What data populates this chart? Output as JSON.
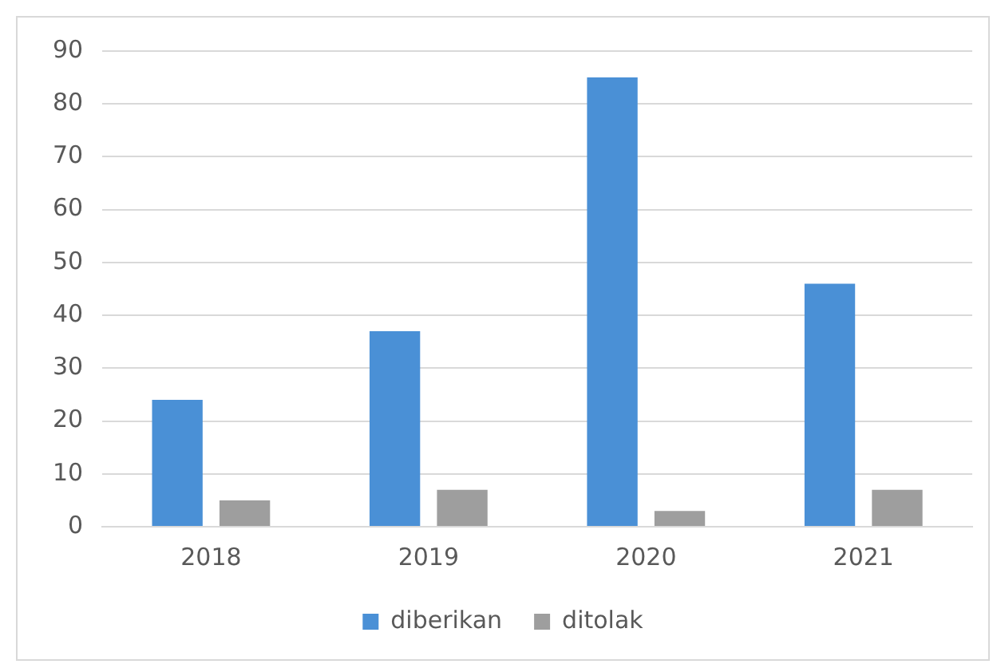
{
  "chart_data": {
    "type": "bar",
    "categories": [
      "2018",
      "2019",
      "2020",
      "2021"
    ],
    "series": [
      {
        "name": "diberikan",
        "color": "#4a90d6",
        "values": [
          24,
          37,
          85,
          46
        ]
      },
      {
        "name": "ditolak",
        "color": "#9e9e9e",
        "values": [
          5,
          7,
          3,
          7
        ]
      }
    ],
    "ylim": [
      0,
      90
    ],
    "yticks": [
      0,
      10,
      20,
      30,
      40,
      50,
      60,
      70,
      80,
      90
    ],
    "grid": "y",
    "legend": "bottom"
  }
}
